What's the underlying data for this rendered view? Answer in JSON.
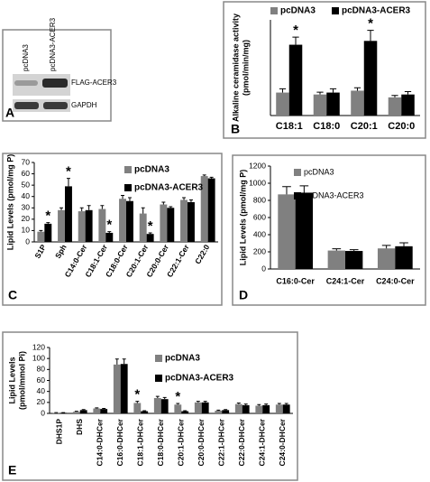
{
  "blot": {
    "panel": "A",
    "lanes": [
      "pcDNA3",
      "pcDNA3-ACER3"
    ],
    "bands": [
      "FLAG-ACER3",
      "GAPDH"
    ]
  },
  "chart_data": [
    {
      "type": "bar",
      "panel": "B",
      "ylabel": [
        "Alkaline ceramidase activity",
        "(pmol/min/mg)"
      ],
      "categories": [
        "C18:1",
        "C18:0",
        "C20:1",
        "C20:0"
      ],
      "ylim": [
        0,
        5
      ],
      "series": [
        {
          "name": "pcDNA3",
          "color": "#808080",
          "values": [
            1.2,
            1.1,
            1.3,
            0.95
          ],
          "errors": [
            0.2,
            0.12,
            0.15,
            0.1
          ]
        },
        {
          "name": "pcDNA3-ACER3",
          "color": "#000000",
          "values": [
            3.7,
            1.2,
            3.9,
            1.1
          ],
          "errors": [
            0.4,
            0.2,
            0.55,
            0.15
          ]
        }
      ],
      "annotations": [
        {
          "text": "*",
          "category": 0,
          "series": 1
        },
        {
          "text": "*",
          "category": 2,
          "series": 1
        }
      ]
    },
    {
      "type": "bar",
      "panel": "C",
      "ylabel": [
        "Lipid Levels (pmol/mg P)"
      ],
      "categories": [
        "S1P",
        "Sph",
        "C14:0-Cer",
        "C18:1-Cer",
        "C18:0-Cer",
        "C20:1-Cer",
        "C20:0-Cer",
        "C22:1-Cer",
        "C22:0"
      ],
      "ylim": [
        0,
        70
      ],
      "yticks": [
        0,
        10,
        20,
        30,
        40,
        50,
        60,
        70
      ],
      "series": [
        {
          "name": "pcDNA3",
          "color": "#808080",
          "values": [
            9,
            28,
            27,
            29,
            38,
            25,
            33,
            37,
            58
          ],
          "errors": [
            1,
            2,
            3,
            3,
            3,
            5,
            2,
            2,
            1
          ]
        },
        {
          "name": "pcDNA3-ACER3",
          "color": "#000000",
          "values": [
            16,
            49,
            28,
            8,
            36,
            7,
            30,
            35,
            56
          ],
          "errors": [
            1,
            7,
            4,
            1,
            3,
            1,
            1,
            2,
            1
          ]
        }
      ],
      "annotations": [
        {
          "text": "*",
          "category": 0,
          "series": 1
        },
        {
          "text": "*",
          "category": 1,
          "series": 1
        },
        {
          "text": "*",
          "category": 3,
          "series": 1
        },
        {
          "text": "*",
          "category": 5,
          "series": 1
        }
      ]
    },
    {
      "type": "bar",
      "panel": "D",
      "ylabel": [
        "Lipid Levels (pmol/mg P)"
      ],
      "categories": [
        "C16:0-Cer",
        "C24:1-Cer",
        "C24:0-Cer"
      ],
      "ylim": [
        0,
        1200
      ],
      "yticks": [
        0,
        200,
        400,
        600,
        800,
        1000,
        1200
      ],
      "series": [
        {
          "name": "pcDNA3",
          "color": "#808080",
          "values": [
            870,
            215,
            240
          ],
          "errors": [
            90,
            20,
            35
          ]
        },
        {
          "name": "pcDNA3-ACER3",
          "color": "#000000",
          "values": [
            890,
            210,
            265
          ],
          "errors": [
            80,
            15,
            40
          ]
        }
      ],
      "annotations": []
    },
    {
      "type": "bar",
      "panel": "E",
      "ylabel": [
        "Lipid Levels",
        "(pmol/mmol Pi)"
      ],
      "categories": [
        "DHS1P",
        "DHS",
        "C14:0-DHCer",
        "C16:0-DHCer",
        "C18:1-DHCer",
        "C18:0-DHCer",
        "C20:1-DHCer",
        "C20:0-DHCer",
        "C22:1-DHCer",
        "C22:0-DHCer",
        "C24:1-DHCer",
        "C24:0-DHCer"
      ],
      "ylim": [
        0,
        120
      ],
      "yticks": [
        0,
        20,
        40,
        60,
        80,
        100,
        120
      ],
      "series": [
        {
          "name": "pcDNA3",
          "color": "#808080",
          "values": [
            1,
            3,
            9,
            89,
            19,
            28,
            16,
            20,
            5,
            17,
            14,
            16
          ],
          "errors": [
            0.5,
            1,
            1,
            10,
            3,
            3,
            2,
            2,
            1,
            2,
            2,
            2
          ]
        },
        {
          "name": "pcDNA3-ACER3",
          "color": "#000000",
          "values": [
            1,
            6,
            8,
            90,
            4,
            26,
            4,
            20,
            6,
            15,
            15,
            16
          ],
          "errors": [
            0.5,
            1,
            1,
            9,
            1,
            3,
            1,
            2,
            1,
            2,
            2,
            2
          ]
        }
      ],
      "annotations": [
        {
          "text": "*",
          "category": 4,
          "series": 0
        },
        {
          "text": "*",
          "category": 6,
          "series": 0
        }
      ]
    }
  ]
}
